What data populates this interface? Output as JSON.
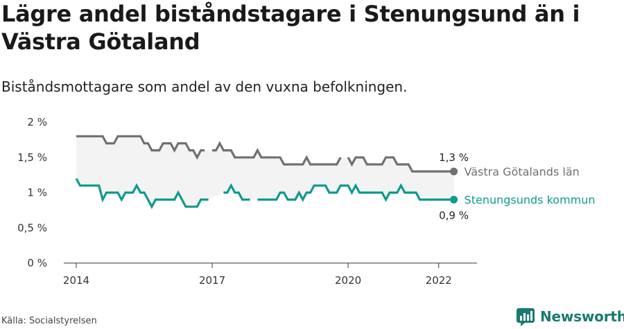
{
  "title": "Lägre andel biståndstagare i Stenungsund än i Västra Götaland",
  "subtitle": "Biståndsmottagare som andel av den vuxna befolkningen.",
  "source": "Källa: Socialstyrelsen",
  "brand": {
    "name": "Newsworthy",
    "icon": "newsworthy-logo-icon",
    "color": "#1a7a70"
  },
  "chart_data": {
    "type": "line",
    "ylim": [
      0,
      2
    ],
    "y_ticks": [
      {
        "value": 0,
        "label": "0 %"
      },
      {
        "value": 0.5,
        "label": "0,5 %"
      },
      {
        "value": 1,
        "label": "1 %"
      },
      {
        "value": 1.5,
        "label": "1,5 %"
      },
      {
        "value": 2,
        "label": "2 %"
      }
    ],
    "x_range": [
      "2014-01",
      "2022-06"
    ],
    "x_ticks": [
      {
        "value": "2014-01",
        "label": "2014"
      },
      {
        "value": "2017-01",
        "label": "2017"
      },
      {
        "value": "2020-01",
        "label": "2020"
      },
      {
        "value": "2022-01",
        "label": "2022"
      }
    ],
    "grid": false,
    "shade_between_series": true,
    "series": [
      {
        "name": "Västra Götalands län",
        "color": "#707070",
        "end_label": "1,3 %",
        "points": [
          [
            "2014-01",
            1.8
          ],
          [
            "2014-02",
            1.8
          ],
          [
            "2014-03",
            1.8
          ],
          [
            "2014-04",
            1.8
          ],
          [
            "2014-05",
            1.8
          ],
          [
            "2014-06",
            1.8
          ],
          [
            "2014-07",
            1.8
          ],
          [
            "2014-08",
            1.8
          ],
          [
            "2014-09",
            1.7
          ],
          [
            "2014-10",
            1.7
          ],
          [
            "2014-11",
            1.7
          ],
          [
            "2014-12",
            1.8
          ],
          [
            "2015-01",
            1.8
          ],
          [
            "2015-02",
            1.8
          ],
          [
            "2015-03",
            1.8
          ],
          [
            "2015-04",
            1.8
          ],
          [
            "2015-05",
            1.8
          ],
          [
            "2015-06",
            1.8
          ],
          [
            "2015-07",
            1.7
          ],
          [
            "2015-08",
            1.7
          ],
          [
            "2015-09",
            1.6
          ],
          [
            "2015-10",
            1.6
          ],
          [
            "2015-11",
            1.6
          ],
          [
            "2015-12",
            1.7
          ],
          [
            "2016-01",
            1.7
          ],
          [
            "2016-02",
            1.7
          ],
          [
            "2016-03",
            1.6
          ],
          [
            "2016-04",
            1.7
          ],
          [
            "2016-05",
            1.7
          ],
          [
            "2016-06",
            1.7
          ],
          [
            "2016-07",
            1.6
          ],
          [
            "2016-08",
            1.6
          ],
          [
            "2016-09",
            1.5
          ],
          [
            "2016-10",
            1.6
          ],
          [
            "2016-11",
            1.6
          ],
          [
            null,
            null
          ],
          [
            "2017-01",
            1.6
          ],
          [
            "2017-02",
            1.6
          ],
          [
            "2017-03",
            1.7
          ],
          [
            "2017-04",
            1.6
          ],
          [
            "2017-05",
            1.6
          ],
          [
            "2017-06",
            1.6
          ],
          [
            "2017-07",
            1.5
          ],
          [
            "2017-08",
            1.5
          ],
          [
            "2017-09",
            1.5
          ],
          [
            "2017-10",
            1.5
          ],
          [
            "2017-11",
            1.5
          ],
          [
            "2017-12",
            1.5
          ],
          [
            "2018-01",
            1.6
          ],
          [
            "2018-02",
            1.5
          ],
          [
            "2018-03",
            1.5
          ],
          [
            "2018-04",
            1.5
          ],
          [
            "2018-05",
            1.5
          ],
          [
            "2018-06",
            1.5
          ],
          [
            "2018-07",
            1.5
          ],
          [
            "2018-08",
            1.4
          ],
          [
            "2018-09",
            1.4
          ],
          [
            "2018-10",
            1.4
          ],
          [
            "2018-11",
            1.4
          ],
          [
            "2018-12",
            1.4
          ],
          [
            "2019-01",
            1.4
          ],
          [
            "2019-02",
            1.5
          ],
          [
            "2019-03",
            1.4
          ],
          [
            "2019-04",
            1.4
          ],
          [
            "2019-05",
            1.4
          ],
          [
            "2019-06",
            1.4
          ],
          [
            "2019-07",
            1.4
          ],
          [
            "2019-08",
            1.4
          ],
          [
            "2019-09",
            1.4
          ],
          [
            "2019-10",
            1.4
          ],
          [
            "2019-11",
            1.5
          ],
          [
            null,
            null
          ],
          [
            "2020-01",
            1.5
          ],
          [
            "2020-02",
            1.4
          ],
          [
            "2020-03",
            1.5
          ],
          [
            "2020-04",
            1.5
          ],
          [
            "2020-05",
            1.5
          ],
          [
            "2020-06",
            1.4
          ],
          [
            "2020-07",
            1.4
          ],
          [
            "2020-08",
            1.4
          ],
          [
            "2020-09",
            1.4
          ],
          [
            "2020-10",
            1.4
          ],
          [
            "2020-11",
            1.5
          ],
          [
            "2020-12",
            1.5
          ],
          [
            "2021-01",
            1.5
          ],
          [
            "2021-02",
            1.4
          ],
          [
            "2021-03",
            1.4
          ],
          [
            "2021-04",
            1.4
          ],
          [
            "2021-05",
            1.4
          ],
          [
            "2021-06",
            1.3
          ],
          [
            "2021-07",
            1.3
          ],
          [
            "2021-08",
            1.3
          ],
          [
            "2021-09",
            1.3
          ],
          [
            "2021-10",
            1.3
          ],
          [
            "2021-11",
            1.3
          ],
          [
            "2021-12",
            1.3
          ],
          [
            "2022-01",
            1.3
          ],
          [
            "2022-02",
            1.3
          ],
          [
            "2022-03",
            1.3
          ],
          [
            "2022-04",
            1.3
          ],
          [
            "2022-05",
            1.3
          ]
        ]
      },
      {
        "name": "Stenungsunds kommun",
        "color": "#0f9a8c",
        "end_label": "0,9 %",
        "points": [
          [
            "2014-01",
            1.2
          ],
          [
            "2014-02",
            1.1
          ],
          [
            "2014-03",
            1.1
          ],
          [
            "2014-04",
            1.1
          ],
          [
            "2014-05",
            1.1
          ],
          [
            "2014-06",
            1.1
          ],
          [
            "2014-07",
            1.1
          ],
          [
            "2014-08",
            0.9
          ],
          [
            "2014-09",
            1.0
          ],
          [
            "2014-10",
            1.0
          ],
          [
            "2014-11",
            1.0
          ],
          [
            "2014-12",
            1.0
          ],
          [
            "2015-01",
            0.9
          ],
          [
            "2015-02",
            1.0
          ],
          [
            "2015-03",
            1.0
          ],
          [
            "2015-04",
            1.0
          ],
          [
            "2015-05",
            1.1
          ],
          [
            "2015-06",
            1.0
          ],
          [
            "2015-07",
            1.0
          ],
          [
            "2015-08",
            0.9
          ],
          [
            "2015-09",
            0.8
          ],
          [
            "2015-10",
            0.9
          ],
          [
            "2015-11",
            0.9
          ],
          [
            "2015-12",
            0.9
          ],
          [
            "2016-01",
            0.9
          ],
          [
            "2016-02",
            0.9
          ],
          [
            "2016-03",
            0.9
          ],
          [
            "2016-04",
            1.0
          ],
          [
            "2016-05",
            0.9
          ],
          [
            "2016-06",
            0.8
          ],
          [
            "2016-07",
            0.8
          ],
          [
            "2016-08",
            0.8
          ],
          [
            "2016-09",
            0.8
          ],
          [
            "2016-10",
            0.9
          ],
          [
            "2016-11",
            0.9
          ],
          [
            "2016-12",
            0.9
          ],
          [
            null,
            null
          ],
          [
            "2017-04",
            1.0
          ],
          [
            "2017-05",
            1.0
          ],
          [
            "2017-06",
            1.1
          ],
          [
            "2017-07",
            1.0
          ],
          [
            "2017-08",
            1.0
          ],
          [
            "2017-09",
            0.9
          ],
          [
            "2017-10",
            0.9
          ],
          [
            "2017-11",
            0.9
          ],
          [
            null,
            null
          ],
          [
            "2018-01",
            0.9
          ],
          [
            "2018-02",
            0.9
          ],
          [
            "2018-03",
            0.9
          ],
          [
            "2018-04",
            0.9
          ],
          [
            "2018-05",
            0.9
          ],
          [
            "2018-06",
            0.9
          ],
          [
            "2018-07",
            1.0
          ],
          [
            "2018-08",
            1.0
          ],
          [
            "2018-09",
            0.9
          ],
          [
            "2018-10",
            0.9
          ],
          [
            "2018-11",
            0.9
          ],
          [
            "2018-12",
            1.0
          ],
          [
            "2019-01",
            0.9
          ],
          [
            "2019-02",
            1.0
          ],
          [
            "2019-03",
            1.0
          ],
          [
            "2019-04",
            1.1
          ],
          [
            "2019-05",
            1.1
          ],
          [
            "2019-06",
            1.1
          ],
          [
            "2019-07",
            1.1
          ],
          [
            "2019-08",
            1.0
          ],
          [
            "2019-09",
            1.0
          ],
          [
            "2019-10",
            1.0
          ],
          [
            "2019-11",
            1.1
          ],
          [
            "2019-12",
            1.1
          ],
          [
            "2020-01",
            1.1
          ],
          [
            "2020-02",
            1.0
          ],
          [
            "2020-03",
            1.1
          ],
          [
            "2020-04",
            1.0
          ],
          [
            "2020-05",
            1.0
          ],
          [
            "2020-06",
            1.0
          ],
          [
            "2020-07",
            1.0
          ],
          [
            "2020-08",
            1.0
          ],
          [
            "2020-09",
            1.0
          ],
          [
            "2020-10",
            1.0
          ],
          [
            "2020-11",
            0.9
          ],
          [
            "2020-12",
            1.0
          ],
          [
            "2021-01",
            1.0
          ],
          [
            "2021-02",
            1.0
          ],
          [
            "2021-03",
            1.1
          ],
          [
            "2021-04",
            1.0
          ],
          [
            "2021-05",
            1.0
          ],
          [
            "2021-06",
            1.0
          ],
          [
            "2021-07",
            1.0
          ],
          [
            "2021-08",
            0.9
          ],
          [
            "2021-09",
            0.9
          ],
          [
            "2021-10",
            0.9
          ],
          [
            "2021-11",
            0.9
          ],
          [
            "2021-12",
            0.9
          ],
          [
            "2022-01",
            0.9
          ],
          [
            "2022-02",
            0.9
          ],
          [
            "2022-03",
            0.9
          ],
          [
            "2022-04",
            0.9
          ],
          [
            "2022-05",
            0.9
          ]
        ]
      }
    ]
  }
}
